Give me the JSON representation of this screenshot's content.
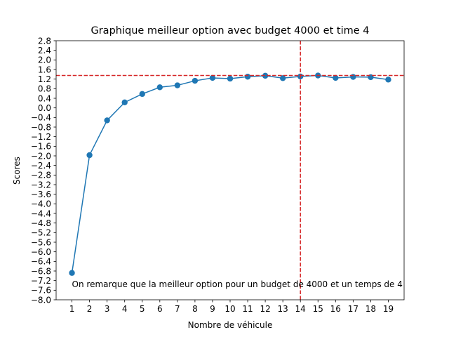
{
  "chart_data": {
    "type": "line",
    "title": "Graphique meilleur option avec budget 4000 et time 4",
    "xlabel": "Nombre de véhicule",
    "ylabel": "Scores",
    "x": [
      1,
      2,
      3,
      4,
      5,
      6,
      7,
      8,
      9,
      10,
      11,
      12,
      13,
      14,
      15,
      16,
      17,
      18,
      19
    ],
    "series": [
      {
        "values": [
          -6.88,
          -1.97,
          -0.52,
          0.23,
          0.58,
          0.86,
          0.94,
          1.13,
          1.25,
          1.22,
          1.3,
          1.34,
          1.24,
          1.31,
          1.35,
          1.25,
          1.29,
          1.28,
          1.18
        ],
        "color": "#1f77b4"
      }
    ],
    "xlim": [
      0.1,
      19.9
    ],
    "ylim": [
      -8.0,
      2.8
    ],
    "xticks": [
      1,
      2,
      3,
      4,
      5,
      6,
      7,
      8,
      9,
      10,
      11,
      12,
      13,
      14,
      15,
      16,
      17,
      18,
      19
    ],
    "yticks": [
      "-8.0",
      "-7.6",
      "-7.2",
      "-6.8",
      "-6.4",
      "-6.0",
      "-5.6",
      "-5.2",
      "-4.8",
      "-4.4",
      "-4.0",
      "-3.6",
      "-3.2",
      "-2.8",
      "-2.4",
      "-2.0",
      "-1.6",
      "-1.2",
      "-0.8",
      "-0.4",
      "0.0",
      "0.4",
      "0.8",
      "1.2",
      "1.6",
      "2.0",
      "2.4",
      "2.8"
    ],
    "reference_lines": {
      "horizontal_y": 1.35,
      "vertical_x": 14,
      "color": "#d62728"
    },
    "annotation": {
      "text": "On remarque que la meilleur option pour un budget de 4000 et un temps de 4",
      "x": 1,
      "y": -7.35
    },
    "grid": false,
    "legend": "none"
  }
}
